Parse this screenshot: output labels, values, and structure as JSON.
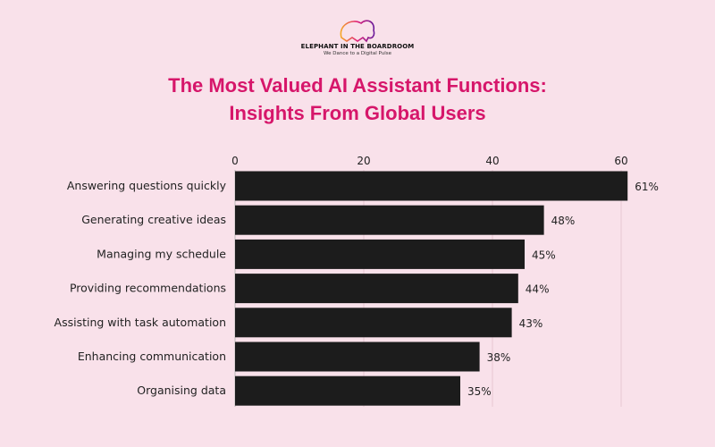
{
  "logo": {
    "name": "ELEPHANT IN THE BOARDROOM",
    "tagline": "We Dance to a Digital Pulse"
  },
  "chart_data": {
    "type": "bar",
    "orientation": "horizontal",
    "title_line1": "The Most Valued AI Assistant Functions:",
    "title_line2": "Insights From Global Users",
    "categories": [
      "Answering questions quickly",
      "Generating creative ideas",
      "Managing my schedule",
      "Providing recommendations",
      "Assisting with task automation",
      "Enhancing communication",
      "Organising data"
    ],
    "values": [
      61,
      48,
      45,
      44,
      43,
      38,
      35
    ],
    "data_labels": [
      "61%",
      "48%",
      "45%",
      "44%",
      "43%",
      "38%",
      "35%"
    ],
    "xticks": [
      0,
      20,
      40,
      60
    ],
    "xlim": [
      0,
      61
    ],
    "axis_position": "top",
    "grid": true,
    "bar_color": "#1c1c1c",
    "title_color": "#d6166a",
    "background": "#f9e1ea"
  }
}
